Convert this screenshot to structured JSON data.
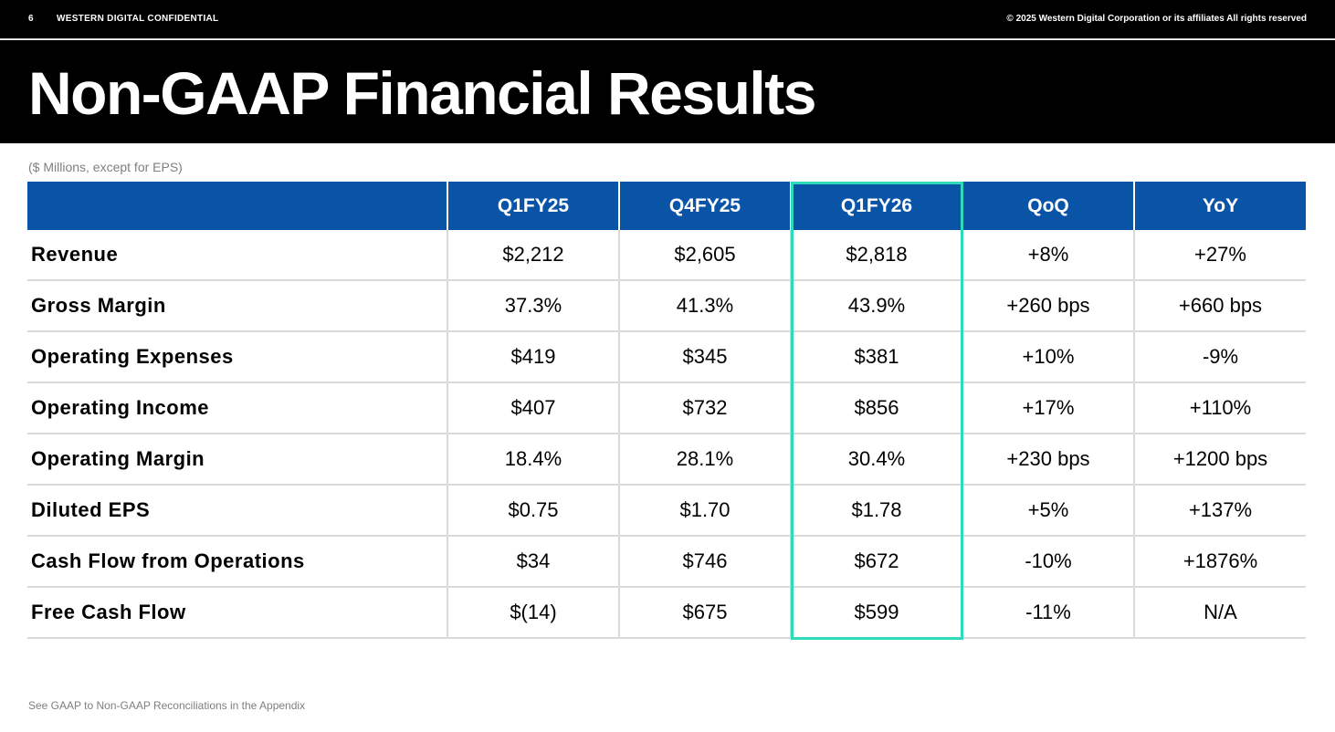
{
  "header": {
    "page_number": "6",
    "confidential": "WESTERN DIGITAL CONFIDENTIAL",
    "copyright": "© 2025 Western Digital Corporation or its affiliates  All rights reserved"
  },
  "title": "Non-GAAP Financial Results",
  "subtitle": "($ Millions, except for EPS)",
  "colors": {
    "header_blue": "#0a54a8",
    "highlight": "#2ddbbb"
  },
  "table": {
    "columns": [
      "",
      "Q1FY25",
      "Q4FY25",
      "Q1FY26",
      "QoQ",
      "YoY"
    ],
    "highlighted_column": "Q1FY26",
    "rows": [
      [
        "Revenue",
        "$2,212",
        "$2,605",
        "$2,818",
        "+8%",
        "+27%"
      ],
      [
        "Gross Margin",
        "37.3%",
        "41.3%",
        "43.9%",
        "+260 bps",
        "+660 bps"
      ],
      [
        "Operating Expenses",
        "$419",
        "$345",
        "$381",
        "+10%",
        "-9%"
      ],
      [
        "Operating Income",
        "$407",
        "$732",
        "$856",
        "+17%",
        "+110%"
      ],
      [
        "Operating Margin",
        "18.4%",
        "28.1%",
        "30.4%",
        "+230 bps",
        "+1200 bps"
      ],
      [
        "Diluted EPS",
        "$0.75",
        "$1.70",
        "$1.78",
        "+5%",
        "+137%"
      ],
      [
        "Cash Flow from Operations",
        "$34",
        "$746",
        "$672",
        "-10%",
        "+1876%"
      ],
      [
        "Free Cash Flow",
        "$(14)",
        "$675",
        "$599",
        "-11%",
        "N/A"
      ]
    ]
  },
  "footnote": "See GAAP to Non-GAAP Reconciliations in the Appendix"
}
